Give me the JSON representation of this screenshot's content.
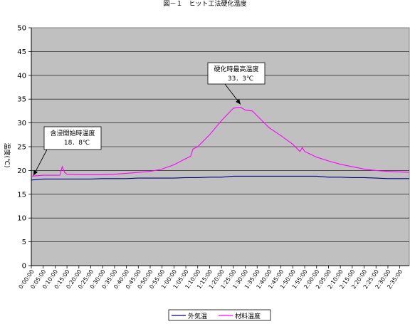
{
  "chart_data": {
    "type": "line",
    "title": "図－１　ヒット工法硬化温度",
    "ylabel": "温度(℃)",
    "xlabel": "",
    "ylim": [
      0,
      50
    ],
    "yticks": [
      0,
      5,
      10,
      15,
      20,
      25,
      30,
      35,
      40,
      45,
      50
    ],
    "xticks": [
      "0:00:00",
      "0:05:00",
      "0:10:00",
      "0:15:00",
      "0:20:00",
      "0:25:00",
      "0:30:00",
      "0:35:00",
      "0:40:00",
      "0:45:00",
      "0:50:00",
      "0:55:00",
      "1:00:00",
      "1:05:00",
      "1:10:00",
      "1:15:00",
      "1:20:00",
      "1:25:00",
      "1:30:00",
      "1:35:00",
      "1:40:00",
      "1:45:00",
      "1:50:00",
      "1:55:00",
      "2:00:00",
      "2:05:00",
      "2:10:00",
      "2:15:00",
      "2:20:00",
      "2:25:00",
      "2:30:00",
      "2:35:00"
    ],
    "xlim_minutes": [
      0,
      159
    ],
    "grid": "horizontal",
    "legend_position": "bottom",
    "plot_background": "#c0c0c0",
    "series": [
      {
        "name": "外気温",
        "color": "#000080",
        "x_minutes": [
          0,
          5,
          10,
          15,
          20,
          25,
          30,
          35,
          40,
          45,
          50,
          55,
          60,
          65,
          70,
          75,
          80,
          85,
          90,
          95,
          100,
          105,
          110,
          115,
          120,
          125,
          130,
          135,
          140,
          145,
          150,
          155,
          159
        ],
        "values": [
          18.0,
          18.2,
          18.2,
          18.2,
          18.2,
          18.2,
          18.3,
          18.3,
          18.3,
          18.4,
          18.4,
          18.4,
          18.4,
          18.5,
          18.5,
          18.6,
          18.6,
          18.8,
          18.8,
          18.8,
          18.8,
          18.8,
          18.8,
          18.8,
          18.8,
          18.6,
          18.6,
          18.5,
          18.5,
          18.4,
          18.3,
          18.3,
          18.3
        ]
      },
      {
        "name": "材料温度",
        "color": "#ff00ff",
        "x_minutes": [
          0,
          5,
          10,
          12,
          13,
          14,
          15,
          20,
          25,
          30,
          35,
          40,
          45,
          50,
          55,
          60,
          65,
          67,
          68,
          70,
          75,
          80,
          85,
          88,
          90,
          93,
          95,
          100,
          105,
          110,
          113,
          114,
          115,
          120,
          125,
          130,
          135,
          140,
          145,
          150,
          155,
          159
        ],
        "values": [
          18.8,
          19.0,
          19.0,
          19.0,
          20.8,
          19.6,
          19.2,
          19.1,
          19.1,
          19.1,
          19.2,
          19.4,
          19.6,
          19.8,
          20.3,
          21.2,
          22.5,
          23.0,
          24.5,
          25.0,
          27.5,
          30.5,
          33.1,
          33.3,
          32.7,
          32.5,
          31.5,
          29.0,
          27.3,
          25.5,
          24.0,
          24.8,
          24.0,
          22.8,
          22.0,
          21.3,
          20.8,
          20.3,
          20.0,
          19.8,
          19.7,
          19.6
        ]
      }
    ],
    "annotations": [
      {
        "text_line1": "含浸開始時温度",
        "text_line2": "18．8℃",
        "x_minutes": 0,
        "y": 18.8
      },
      {
        "text_line1": "硬化時最高温度",
        "text_line2": "33．3℃",
        "x_minutes": 88,
        "y": 33.3
      }
    ]
  }
}
